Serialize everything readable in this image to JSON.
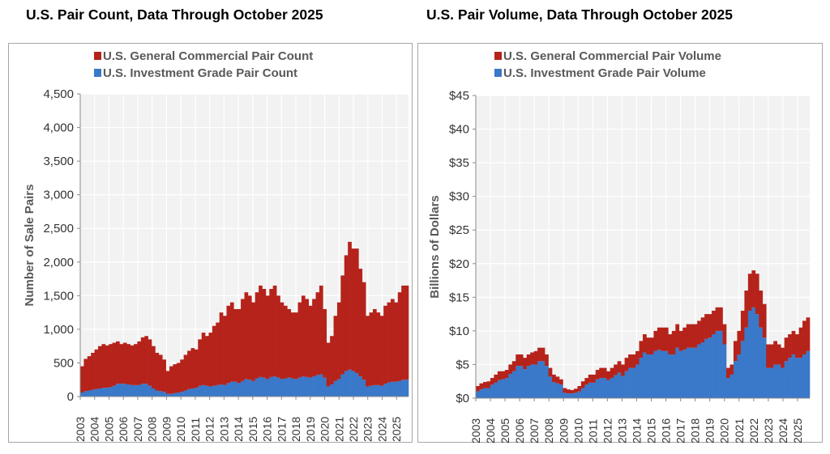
{
  "charts": [
    {
      "title": "U.S. Pair Count, Data Through October 2025",
      "chart_data": {
        "type": "bar",
        "stacked": true,
        "ylabel": "Number of Sale Pairs",
        "ylim": [
          0,
          4500
        ],
        "yticks": [
          0,
          500,
          1000,
          1500,
          2000,
          2500,
          3000,
          3500,
          4000,
          4500
        ],
        "ytick_labels": [
          "0",
          "500",
          "1,000",
          "1,500",
          "2,000",
          "2,500",
          "3,000",
          "3,500",
          "4,000",
          "4,500"
        ],
        "xtick_labels": [
          "2003",
          "2004",
          "2005",
          "2006",
          "2007",
          "2008",
          "2009",
          "2010",
          "2011",
          "2012",
          "2013",
          "2014",
          "2015",
          "2016",
          "2017",
          "2018",
          "2019",
          "2020",
          "2021",
          "2022",
          "2023",
          "2024",
          "2025"
        ],
        "grid": true,
        "legend_position": "top",
        "x_resolution": "quarterly (approximate, from monthly bars)",
        "series": [
          {
            "name": "U.S. Investment Grade Pair Count",
            "color": "#3a78c9",
            "values": [
              60,
              80,
              90,
              100,
              110,
              120,
              130,
              130,
              140,
              160,
              190,
              190,
              190,
              180,
              170,
              170,
              170,
              190,
              190,
              160,
              120,
              90,
              80,
              70,
              40,
              40,
              50,
              60,
              70,
              90,
              110,
              120,
              130,
              160,
              170,
              160,
              150,
              160,
              170,
              180,
              170,
              200,
              220,
              220,
              200,
              230,
              260,
              250,
              230,
              270,
              290,
              280,
              260,
              290,
              300,
              280,
              260,
              270,
              280,
              270,
              260,
              280,
              300,
              290,
              280,
              300,
              320,
              330,
              280,
              150,
              180,
              230,
              260,
              330,
              380,
              400,
              380,
              350,
              300,
              250,
              150,
              160,
              170,
              170,
              160,
              190,
              210,
              220,
              220,
              230,
              250,
              250
            ]
          },
          {
            "name": "U.S. General Commercial Pair Count",
            "color": "#b5231b",
            "values": [
              390,
              480,
              510,
              550,
              590,
              630,
              650,
              630,
              640,
              640,
              630,
              590,
              610,
              600,
              590,
              610,
              650,
              690,
              710,
              690,
              630,
              560,
              540,
              480,
              340,
              410,
              430,
              440,
              480,
              530,
              570,
              600,
              570,
              690,
              780,
              740,
              800,
              890,
              930,
              1070,
              1030,
              1150,
              1180,
              1080,
              1100,
              1220,
              1290,
              1250,
              1170,
              1280,
              1360,
              1320,
              1240,
              1310,
              1350,
              1220,
              1140,
              1080,
              1020,
              980,
              990,
              1120,
              1200,
              1160,
              1070,
              1150,
              1230,
              1320,
              1020,
              650,
              720,
              970,
              1140,
              1470,
              1720,
              1900,
              1820,
              1850,
              1600,
              1450,
              1050,
              1090,
              1130,
              1080,
              1040,
              1160,
              1190,
              1230,
              1180,
              1320,
              1400,
              1400
            ]
          }
        ]
      }
    },
    {
      "title": "U.S. Pair Volume, Data Through October 2025",
      "chart_data": {
        "type": "bar",
        "stacked": true,
        "ylabel": "Billions of Dollars",
        "ylim": [
          0,
          45
        ],
        "yticks": [
          0,
          5,
          10,
          15,
          20,
          25,
          30,
          35,
          40,
          45
        ],
        "ytick_labels": [
          "$0",
          "$5",
          "$10",
          "$15",
          "$20",
          "$25",
          "$30",
          "$35",
          "$40",
          "$45"
        ],
        "xtick_labels": [
          "2003",
          "2004",
          "2005",
          "2006",
          "2007",
          "2008",
          "2009",
          "2010",
          "2011",
          "2012",
          "2013",
          "2014",
          "2015",
          "2016",
          "2017",
          "2018",
          "2019",
          "2020",
          "2021",
          "2022",
          "2023",
          "2024",
          "2025"
        ],
        "grid": true,
        "legend_position": "top",
        "x_resolution": "quarterly (approximate, from monthly bars)",
        "series": [
          {
            "name": "U.S. Investment Grade Pair Volume",
            "color": "#3a78c9",
            "values": [
              1.0,
              1.3,
              1.5,
              1.5,
              2.0,
              2.3,
              2.7,
              2.8,
              3.0,
              3.6,
              4.0,
              4.8,
              4.8,
              4.3,
              4.8,
              5.0,
              5.0,
              5.5,
              5.5,
              4.8,
              3.2,
              2.4,
              2.2,
              2.0,
              0.8,
              0.7,
              0.7,
              0.8,
              1.0,
              1.5,
              2.0,
              2.3,
              2.3,
              2.8,
              3.0,
              3.0,
              2.7,
              3.0,
              3.4,
              3.8,
              3.3,
              4.0,
              4.5,
              4.5,
              5.0,
              6.0,
              6.8,
              6.5,
              6.5,
              7.0,
              7.2,
              7.0,
              7.0,
              6.5,
              6.5,
              7.5,
              7.0,
              7.2,
              7.5,
              7.5,
              7.5,
              8.0,
              8.3,
              8.8,
              9.0,
              9.5,
              10.0,
              10.0,
              8.0,
              3.0,
              3.5,
              5.5,
              6.5,
              8.5,
              10.5,
              13.0,
              13.5,
              12.5,
              10.5,
              9.0,
              4.5,
              4.5,
              5.0,
              5.0,
              4.5,
              5.5,
              6.0,
              6.5,
              6.0,
              6.0,
              6.5,
              7.0
            ]
          },
          {
            "name": "U.S. General Commercial Pair Volume",
            "color": "#b5231b",
            "values": [
              0.8,
              0.9,
              0.9,
              1.0,
              1.0,
              1.2,
              1.3,
              1.2,
              1.2,
              1.4,
              1.5,
              1.7,
              1.7,
              1.7,
              1.7,
              1.8,
              2.0,
              2.0,
              2.0,
              1.7,
              1.3,
              1.1,
              1.0,
              0.8,
              0.7,
              0.6,
              0.5,
              0.6,
              0.8,
              1.0,
              1.0,
              1.2,
              1.2,
              1.4,
              1.5,
              1.5,
              1.3,
              1.5,
              1.6,
              1.7,
              1.7,
              2.0,
              2.0,
              2.0,
              2.0,
              2.5,
              2.7,
              2.5,
              2.5,
              3.0,
              3.3,
              3.5,
              3.5,
              3.0,
              3.5,
              3.5,
              3.0,
              3.3,
              3.5,
              3.5,
              3.5,
              3.5,
              3.7,
              3.7,
              3.5,
              3.5,
              3.5,
              3.5,
              3.0,
              1.5,
              1.5,
              3.0,
              3.5,
              4.5,
              5.5,
              5.5,
              5.5,
              6.0,
              5.5,
              5.0,
              3.5,
              3.5,
              3.5,
              3.0,
              3.0,
              3.5,
              3.5,
              3.5,
              3.5,
              4.5,
              5.0,
              5.0
            ]
          }
        ]
      }
    }
  ]
}
